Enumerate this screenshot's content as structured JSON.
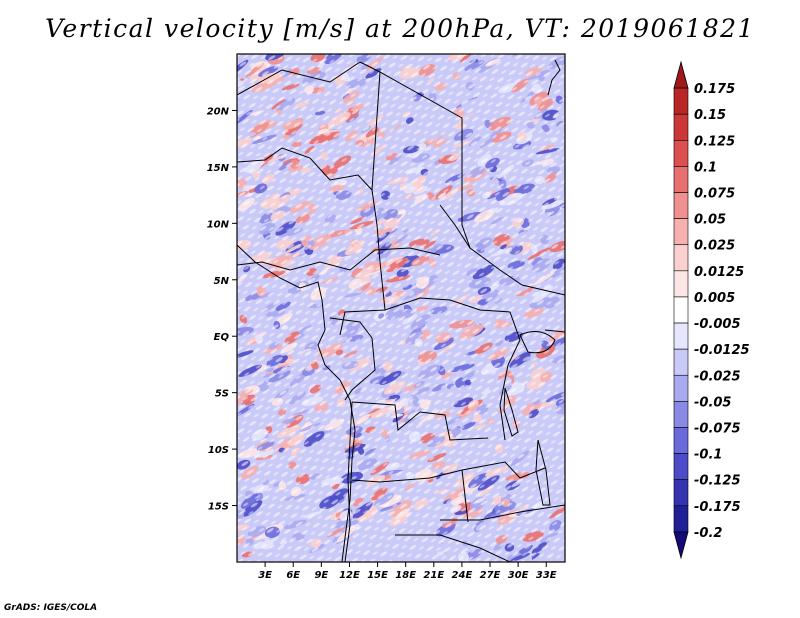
{
  "chart_data": {
    "type": "heatmap",
    "title": "Vertical velocity [m/s] at 200hPa, VT: 2019061821",
    "variable": "Vertical velocity",
    "units": "m/s",
    "level": "200hPa",
    "valid_time": "2019061821",
    "x_ticks": [
      "3E",
      "6E",
      "9E",
      "12E",
      "15E",
      "18E",
      "21E",
      "24E",
      "27E",
      "30E",
      "33E"
    ],
    "x_values": [
      3,
      6,
      9,
      12,
      15,
      18,
      21,
      24,
      27,
      30,
      33
    ],
    "y_ticks": [
      "20N",
      "15N",
      "10N",
      "5N",
      "EQ",
      "5S",
      "10S",
      "15S"
    ],
    "y_values": [
      20,
      15,
      10,
      5,
      0,
      -5,
      -10,
      -15
    ],
    "xlim": [
      0,
      35
    ],
    "ylim": [
      -20,
      25
    ],
    "colorbar": {
      "levels": [
        "0.175",
        "0.15",
        "0.125",
        "0.1",
        "0.075",
        "0.05",
        "0.025",
        "0.0125",
        "0.005",
        "-0.005",
        "-0.0125",
        "-0.025",
        "-0.05",
        "-0.075",
        "-0.1",
        "-0.125",
        "-0.175",
        "-0.2"
      ],
      "colors": [
        "#a01818",
        "#b82626",
        "#cc3838",
        "#dc5050",
        "#e87070",
        "#f09090",
        "#f6b0b0",
        "#fad0d0",
        "#fde6e6",
        "#ffffff",
        "#e6e6fe",
        "#cacaf8",
        "#aaaaf0",
        "#8a8ae6",
        "#6a6adc",
        "#4c4cc8",
        "#3434b0",
        "#202096",
        "#140a78"
      ]
    }
  },
  "credit": "GrADS: IGES/COLA"
}
